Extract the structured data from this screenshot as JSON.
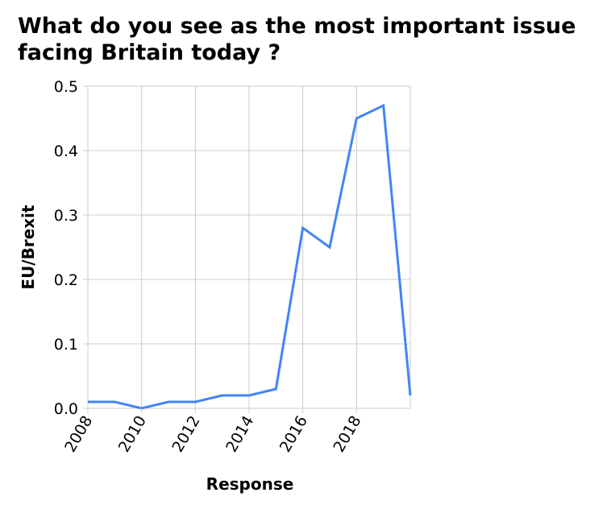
{
  "chart_data": {
    "type": "line",
    "title": "What do you see as the most important issue facing Britain today ?",
    "xlabel": "Response",
    "ylabel": "EU/Brexit",
    "xlim": [
      2008,
      2020
    ],
    "ylim": [
      0,
      0.5
    ],
    "x_ticks": [
      2008,
      2010,
      2012,
      2014,
      2016,
      2018
    ],
    "x_tick_labels": [
      "2008",
      "2010",
      "2012",
      "2014",
      "2016",
      "2018"
    ],
    "y_ticks": [
      0,
      0.1,
      0.2,
      0.3,
      0.4,
      0.5
    ],
    "y_tick_labels": [
      "0.0",
      "0.1",
      "0.2",
      "0.3",
      "0.4",
      "0.5"
    ],
    "grid": true,
    "series": [
      {
        "x": [
          2008,
          2009,
          2010,
          2011,
          2012,
          2013,
          2014,
          2015,
          2016,
          2017,
          2018,
          2019,
          2020
        ],
        "values": [
          0.01,
          0.01,
          0.0,
          0.01,
          0.01,
          0.02,
          0.02,
          0.03,
          0.28,
          0.25,
          0.45,
          0.47,
          0.02
        ],
        "color": "#4285f4"
      }
    ],
    "grid_color": "#cccccc"
  }
}
